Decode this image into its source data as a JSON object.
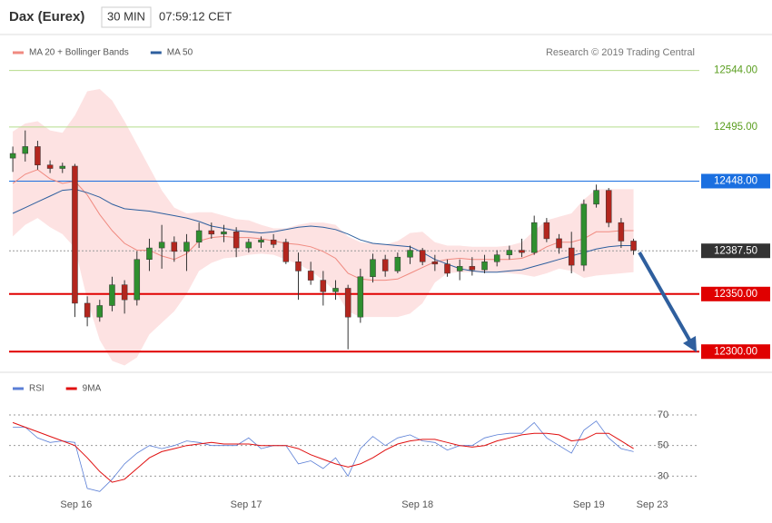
{
  "chart_data": [
    {
      "type": "candlestick",
      "title": "Dax (Eurex)",
      "interval": "30 MIN",
      "time": "07:59:12 CET",
      "source": "Research © 2019 Trading Central",
      "categories": [
        null,
        null,
        null,
        null,
        null,
        null,
        null,
        null,
        null,
        null,
        null,
        null,
        null,
        null,
        null,
        null,
        null,
        null,
        null,
        null,
        null,
        null,
        null,
        null,
        null,
        null,
        null,
        null,
        null,
        null,
        null,
        null,
        null,
        null,
        null,
        null,
        null,
        null,
        null,
        null,
        null,
        null,
        null,
        null,
        null,
        null,
        null,
        null,
        null,
        null,
        null
      ],
      "open": [
        12468,
        12472,
        12478,
        12462,
        12459,
        12461,
        12342,
        12330,
        12340,
        12358,
        12345,
        12380,
        12390,
        12395,
        12387,
        12395,
        12405,
        12402,
        12404,
        12390,
        12395,
        12397,
        12395,
        12378,
        12370,
        12362,
        12352,
        12355,
        12330,
        12365,
        12380,
        12370,
        12382,
        12388,
        12378,
        12376,
        12370,
        12374,
        12371,
        12378,
        12384,
        12388,
        12386,
        12412,
        12398,
        12390,
        12375,
        12428,
        12440,
        12412,
        12396
      ],
      "high": [
        12478,
        12492,
        12483,
        12466,
        12464,
        12463,
        12348,
        12345,
        12365,
        12362,
        12387,
        12398,
        12410,
        12400,
        12402,
        12412,
        12412,
        12410,
        12408,
        12398,
        12400,
        12402,
        12398,
        12386,
        12378,
        12370,
        12362,
        12358,
        12372,
        12385,
        12384,
        12386,
        12392,
        12390,
        12384,
        12380,
        12380,
        12382,
        12384,
        12388,
        12392,
        12398,
        12418,
        12416,
        12402,
        12404,
        12432,
        12445,
        12442,
        12416,
        12398
      ],
      "low": [
        12456,
        12465,
        12458,
        12455,
        12455,
        12330,
        12322,
        12326,
        12335,
        12333,
        12340,
        12370,
        12372,
        12378,
        12370,
        12390,
        12398,
        12395,
        12382,
        12386,
        12390,
        12390,
        12376,
        12345,
        12358,
        12340,
        12345,
        12302,
        12325,
        12360,
        12365,
        12368,
        12376,
        12375,
        12370,
        12365,
        12362,
        12366,
        12368,
        12374,
        12380,
        12382,
        12384,
        12395,
        12385,
        12368,
        12370,
        12425,
        12408,
        12390,
        12384
      ],
      "close": [
        12472,
        12478,
        12462,
        12459,
        12461,
        12342,
        12330,
        12340,
        12358,
        12345,
        12380,
        12390,
        12395,
        12387,
        12395,
        12405,
        12402,
        12404,
        12390,
        12395,
        12397,
        12393,
        12378,
        12370,
        12362,
        12352,
        12355,
        12330,
        12365,
        12380,
        12370,
        12382,
        12388,
        12378,
        12376,
        12368,
        12374,
        12371,
        12378,
        12384,
        12388,
        12386,
        12412,
        12398,
        12390,
        12375,
        12428,
        12440,
        12412,
        12396,
        12388
      ],
      "up_color": "#2f8f2f",
      "down_color": "#b3261e",
      "series": [
        {
          "name": "MA 20 + Bollinger Bands",
          "color": "#f08a80",
          "band_color": "#fde2e2",
          "values": [
            12446,
            12454,
            12458,
            12450,
            12446,
            12448,
            12436,
            12419,
            12405,
            12394,
            12388,
            12388,
            12383,
            12380,
            12385,
            12396,
            12399,
            12400,
            12399,
            12399,
            12398,
            12396,
            12394,
            12393,
            12391,
            12387,
            12381,
            12368,
            12363,
            12362,
            12362,
            12363,
            12368,
            12373,
            12378,
            12380,
            12381,
            12380,
            12380,
            12380,
            12380,
            12381,
            12385,
            12391,
            12395,
            12395,
            12398,
            12404,
            12404,
            12405,
            12405
          ],
          "upper": [
            12491,
            12498,
            12500,
            12492,
            12490,
            12505,
            12526,
            12528,
            12518,
            12500,
            12480,
            12460,
            12440,
            12425,
            12420,
            12421,
            12421,
            12418,
            12415,
            12414,
            12410,
            12407,
            12407,
            12410,
            12412,
            12412,
            12410,
            12400,
            12395,
            12394,
            12393,
            12396,
            12403,
            12404,
            12395,
            12392,
            12392,
            12391,
            12391,
            12391,
            12392,
            12395,
            12405,
            12414,
            12417,
            12420,
            12432,
            12441,
            12441,
            12441,
            12441
          ],
          "lower": [
            12400,
            12410,
            12416,
            12408,
            12402,
            12390,
            12345,
            12310,
            12292,
            12288,
            12295,
            12315,
            12325,
            12335,
            12350,
            12370,
            12377,
            12381,
            12382,
            12384,
            12385,
            12384,
            12380,
            12376,
            12370,
            12362,
            12352,
            12335,
            12330,
            12330,
            12330,
            12330,
            12333,
            12342,
            12360,
            12368,
            12369,
            12369,
            12369,
            12369,
            12368,
            12367,
            12365,
            12368,
            12372,
            12370,
            12364,
            12366,
            12367,
            12368,
            12369
          ]
        },
        {
          "name": "MA 50",
          "color": "#2e5f9e",
          "values": [
            12420,
            12425,
            12430,
            12435,
            12440,
            12441,
            12438,
            12434,
            12428,
            12424,
            12423,
            12422,
            12420,
            12418,
            12416,
            12413,
            12409,
            12407,
            12405,
            12404,
            12403,
            12404,
            12406,
            12408,
            12409,
            12408,
            12406,
            12402,
            12397,
            12394,
            12393,
            12392,
            12391,
            12386,
            12380,
            12376,
            12372,
            12370,
            12369,
            12369,
            12370,
            12371,
            12374,
            12377,
            12380,
            12383,
            12386,
            12389,
            12391,
            12392,
            12392
          ]
        }
      ],
      "ylim": [
        12286,
        12554
      ],
      "yticks": [
        {
          "value": 12544,
          "label": "12544.00"
        },
        {
          "value": 12495,
          "label": "12495.00"
        },
        {
          "value": 12448,
          "label": "12448.00"
        },
        {
          "value": 12387.5,
          "label": "12387.50"
        },
        {
          "value": 12350,
          "label": "12350.00"
        },
        {
          "value": 12300,
          "label": "12300.00"
        }
      ],
      "ytick_styles": [
        "text",
        "text",
        "box",
        "dotted",
        "box",
        "box"
      ],
      "ytick_colors": [
        "#5a9e1f",
        "#5a9e1f",
        "#1a6fe0",
        "#333333",
        "#e00000",
        "#e00000"
      ],
      "xlim": [
        -0.3,
        55.3
      ]
    },
    {
      "type": "line",
      "categories": [
        null,
        null,
        null,
        null,
        null,
        null,
        null,
        null,
        null,
        null,
        null,
        null,
        null,
        null,
        null,
        null,
        null,
        null,
        null,
        null,
        null,
        null,
        null,
        null,
        null,
        null,
        null,
        null,
        null,
        null,
        null,
        null,
        null,
        null,
        null,
        null,
        null,
        null,
        null,
        null,
        null,
        null,
        null,
        null,
        null,
        null,
        null,
        null,
        null,
        null,
        null
      ],
      "series": [
        {
          "name": "RSI",
          "color": "#5b7fd6",
          "values": [
            62,
            62,
            55,
            52,
            53,
            52,
            22,
            20,
            28,
            38,
            45,
            50,
            48,
            50,
            53,
            52,
            50,
            50,
            50,
            55,
            48,
            50,
            50,
            38,
            40,
            35,
            42,
            30,
            48,
            56,
            50,
            55,
            57,
            53,
            52,
            47,
            50,
            50,
            55,
            57,
            58,
            58,
            65,
            55,
            50,
            45,
            60,
            66,
            55,
            48,
            46
          ]
        },
        {
          "name": "9MA",
          "color": "#e01010",
          "values": [
            65,
            62,
            59,
            56,
            53,
            50,
            42,
            33,
            26,
            28,
            35,
            42,
            46,
            48,
            50,
            51,
            52,
            51,
            51,
            51,
            50,
            50,
            50,
            48,
            44,
            41,
            38,
            36,
            38,
            42,
            47,
            51,
            53,
            54,
            54,
            52,
            50,
            49,
            50,
            53,
            55,
            57,
            58,
            58,
            57,
            53,
            54,
            58,
            58,
            53,
            48
          ]
        }
      ],
      "ylim": [
        16,
        86
      ],
      "yticks": [
        70,
        50,
        30
      ],
      "xlim": [
        -0.3,
        55.3
      ],
      "xticks": [
        {
          "value": 5.1,
          "label": "Sep 16"
        },
        {
          "value": 18.8,
          "label": "Sep 17"
        },
        {
          "value": 32.6,
          "label": "Sep 18"
        },
        {
          "value": 46.4,
          "label": "Sep 19"
        },
        {
          "value": 51.5,
          "label": "Sep 23"
        }
      ]
    }
  ]
}
